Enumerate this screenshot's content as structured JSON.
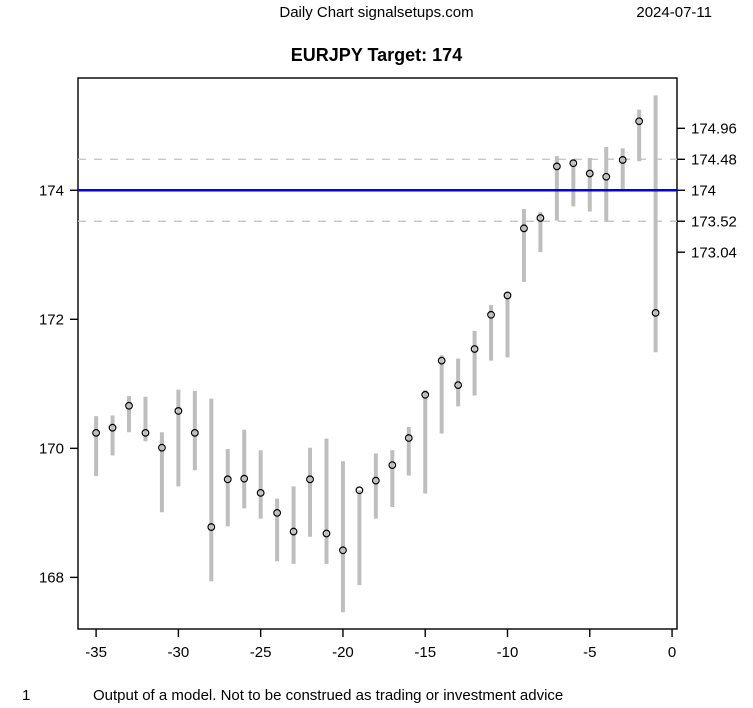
{
  "header": {
    "title": "Daily Chart signalsetups.com",
    "date": "2024-07-11"
  },
  "chart_data": {
    "type": "bar",
    "subtype": "high-low-range-bars-with-point-markers",
    "title": "EURJPY Target: 174",
    "symbol": "EURJPY",
    "target": 174,
    "xlabel": "",
    "ylabel": "",
    "grid": false,
    "legend": null,
    "xlim": [
      -36.1,
      0.3
    ],
    "ylim": [
      167.2,
      175.74
    ],
    "x_ticks": [
      {
        "value": -35,
        "label": "-35"
      },
      {
        "value": -30,
        "label": "-30"
      },
      {
        "value": -25,
        "label": "-25"
      },
      {
        "value": -20,
        "label": "-20"
      },
      {
        "value": -15,
        "label": "-15"
      },
      {
        "value": -10,
        "label": "-10"
      },
      {
        "value": -5,
        "label": "-5"
      },
      {
        "value": 0,
        "label": "0"
      }
    ],
    "y_ticks_left": [
      {
        "value": 168,
        "label": "168"
      },
      {
        "value": 170,
        "label": "170"
      },
      {
        "value": 172,
        "label": "172"
      },
      {
        "value": 174,
        "label": "174"
      }
    ],
    "y_ticks_right": [
      {
        "value": 174.96,
        "label": "174.96"
      },
      {
        "value": 174.48,
        "label": "174.48"
      },
      {
        "value": 174,
        "label": "174"
      },
      {
        "value": 173.52,
        "label": "173.52"
      },
      {
        "value": 173.04,
        "label": "173.04"
      }
    ],
    "reference_lines": [
      {
        "name": "target-line",
        "value": 174,
        "style": "solid",
        "color": "#0000ee"
      },
      {
        "name": "upper-band-line",
        "value": 174.48,
        "style": "dashed",
        "color": "#c8c8c8"
      },
      {
        "name": "lower-band-line",
        "value": 173.52,
        "style": "dashed",
        "color": "#c8c8c8"
      }
    ],
    "bars": [
      {
        "t": -35,
        "high": 170.5,
        "low": 169.57,
        "point": 170.24
      },
      {
        "t": -34,
        "high": 170.51,
        "low": 169.89,
        "point": 170.32
      },
      {
        "t": -33,
        "high": 170.81,
        "low": 170.25,
        "point": 170.66
      },
      {
        "t": -32,
        "high": 170.8,
        "low": 170.11,
        "point": 170.24
      },
      {
        "t": -31,
        "high": 170.25,
        "low": 169.01,
        "point": 170.01
      },
      {
        "t": -30,
        "high": 170.91,
        "low": 169.41,
        "point": 170.58
      },
      {
        "t": -29,
        "high": 170.89,
        "low": 169.66,
        "point": 170.24
      },
      {
        "t": -28,
        "high": 170.77,
        "low": 167.94,
        "point": 168.78
      },
      {
        "t": -27,
        "high": 169.99,
        "low": 168.79,
        "point": 169.52
      },
      {
        "t": -26,
        "high": 170.29,
        "low": 169.07,
        "point": 169.53
      },
      {
        "t": -25,
        "high": 169.97,
        "low": 168.91,
        "point": 169.31
      },
      {
        "t": -24,
        "high": 169.22,
        "low": 168.25,
        "point": 169.0
      },
      {
        "t": -23,
        "high": 169.41,
        "low": 168.21,
        "point": 168.71
      },
      {
        "t": -22,
        "high": 170.01,
        "low": 168.63,
        "point": 169.52
      },
      {
        "t": -21,
        "high": 170.15,
        "low": 168.21,
        "point": 168.68
      },
      {
        "t": -20,
        "high": 169.8,
        "low": 167.46,
        "point": 168.42
      },
      {
        "t": -19,
        "high": 169.35,
        "low": 167.88,
        "point": 169.35
      },
      {
        "t": -18,
        "high": 169.92,
        "low": 168.91,
        "point": 169.5
      },
      {
        "t": -17,
        "high": 169.97,
        "low": 169.09,
        "point": 169.74
      },
      {
        "t": -16,
        "high": 170.33,
        "low": 169.58,
        "point": 170.16
      },
      {
        "t": -15,
        "high": 170.9,
        "low": 169.3,
        "point": 170.83
      },
      {
        "t": -14,
        "high": 171.44,
        "low": 170.23,
        "point": 171.36
      },
      {
        "t": -13,
        "high": 171.39,
        "low": 170.65,
        "point": 170.98
      },
      {
        "t": -12,
        "high": 171.82,
        "low": 170.82,
        "point": 171.54
      },
      {
        "t": -11,
        "high": 172.22,
        "low": 171.36,
        "point": 172.07
      },
      {
        "t": -10,
        "high": 172.41,
        "low": 171.41,
        "point": 172.37
      },
      {
        "t": -9,
        "high": 173.71,
        "low": 172.58,
        "point": 173.41
      },
      {
        "t": -8,
        "high": 173.66,
        "low": 173.04,
        "point": 173.57
      },
      {
        "t": -7,
        "high": 174.53,
        "low": 173.53,
        "point": 174.37
      },
      {
        "t": -6,
        "high": 174.47,
        "low": 173.75,
        "point": 174.42
      },
      {
        "t": -5,
        "high": 174.5,
        "low": 173.67,
        "point": 174.26
      },
      {
        "t": -4,
        "high": 174.67,
        "low": 173.51,
        "point": 174.21
      },
      {
        "t": -3,
        "high": 174.65,
        "low": 174.02,
        "point": 174.47
      },
      {
        "t": -2,
        "high": 175.25,
        "low": 174.45,
        "point": 175.07
      },
      {
        "t": -1,
        "high": 175.47,
        "low": 171.49,
        "point": 172.1
      }
    ],
    "colors": {
      "bar": "#bebebe",
      "point_stroke": "#000000",
      "target_line": "#0000ee",
      "dashed_line": "#c8c8c8",
      "axis": "#000000"
    }
  },
  "footer": {
    "page_number": "1",
    "disclaimer": "Output of a model. Not to be construed as trading or investment advice"
  }
}
